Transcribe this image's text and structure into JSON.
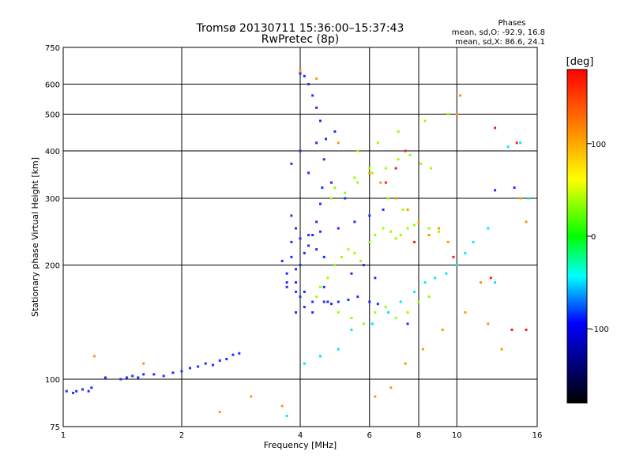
{
  "title_line1": "Tromsø 20130711 15:36:00–15:37:43",
  "title_line2": "RwPretec (8p)",
  "phases": {
    "heading": "Phases",
    "o_line": "mean, sd,O: -92.9, 16.8",
    "x_line": "mean, sd,X:  86.6, 24.1"
  },
  "chart_data": {
    "type": "scatter",
    "xlabel": "Frequency [MHz]",
    "ylabel": "Stationary phase Virtual Height [km]",
    "x_scale": "log",
    "y_scale": "log",
    "xlim": [
      1,
      16
    ],
    "ylim": [
      75,
      750
    ],
    "x_ticks": [
      1,
      2,
      4,
      6,
      8,
      10,
      16
    ],
    "x_gridlines": [
      2,
      4,
      6,
      8,
      10
    ],
    "y_ticks": [
      75,
      100,
      200,
      300,
      400,
      500,
      600,
      750
    ],
    "y_gridlines": [
      100,
      200,
      300,
      400,
      500,
      600
    ],
    "grid": true,
    "colorbar": {
      "label": "[deg]",
      "range": [
        -180,
        180
      ],
      "ticks": [
        100,
        0,
        -100
      ],
      "colors": [
        "#ff0000",
        "#ff8000",
        "#ffff00",
        "#00ff00",
        "#00ffff",
        "#0000ff",
        "#000000"
      ]
    },
    "series": [
      {
        "x": [
          1.02,
          1.06,
          1.08,
          1.12,
          1.16,
          1.18,
          1.28,
          1.4,
          1.45,
          1.5,
          1.55,
          1.6,
          1.7,
          1.8,
          1.9,
          2.0,
          2.1,
          2.2,
          2.3,
          2.4,
          2.5,
          2.6,
          2.7,
          2.8,
          3.6,
          3.7,
          3.8,
          3.9,
          4.0,
          4.1,
          4.2,
          4.3,
          4.4,
          4.5,
          4.55,
          4.6,
          4.65,
          4.5,
          4.4,
          4.3,
          4.2,
          4.1,
          4.0,
          3.9,
          3.8,
          3.7,
          3.7,
          3.9,
          4.0,
          4.3,
          4.6,
          4.8,
          5.0,
          5.3,
          5.6,
          6.0,
          6.3,
          5.8,
          4.4,
          4.6,
          3.8,
          4.0,
          4.2,
          4.5,
          5.0,
          5.5,
          6.0,
          6.5,
          5.2,
          4.8,
          4.2,
          3.8,
          4.0,
          4.4,
          4.9,
          5.4,
          6.2,
          4.6,
          4.1,
          3.9,
          7.5,
          12.5,
          14.0,
          4.7,
          3.9,
          4.1,
          4.3
        ],
        "y": [
          93,
          92,
          93,
          94,
          93,
          95,
          101,
          100,
          101,
          102,
          101,
          103,
          103,
          102,
          104,
          105,
          107,
          108,
          110,
          109,
          112,
          113,
          116,
          117,
          205,
          190,
          210,
          195,
          200,
          215,
          225,
          240,
          260,
          290,
          320,
          380,
          430,
          480,
          520,
          560,
          600,
          630,
          640,
          250,
          270,
          180,
          175,
          170,
          165,
          160,
          160,
          158,
          160,
          162,
          165,
          160,
          158,
          200,
          220,
          210,
          230,
          235,
          240,
          245,
          250,
          260,
          270,
          280,
          300,
          330,
          350,
          370,
          400,
          420,
          450,
          190,
          185,
          175,
          170,
          180,
          140,
          315,
          320,
          160,
          150,
          155,
          150
        ],
        "color": "#1f2fff"
      },
      {
        "x": [
          4.4,
          4.5,
          4.7,
          4.9,
          5.1,
          5.3,
          5.5,
          5.7,
          6.0,
          6.2,
          6.5,
          6.8,
          7.0,
          7.2,
          7.5,
          7.8,
          8.0,
          8.5,
          9.0,
          4.8,
          5.2,
          5.6,
          6.1,
          6.6,
          7.1,
          7.6,
          8.1,
          8.6,
          5.0,
          5.4,
          5.8,
          6.2,
          6.6,
          7.0,
          7.5,
          8.0,
          8.5,
          5.6,
          6.3,
          7.1,
          8.3,
          9.5,
          4.9,
          5.5,
          6.0,
          6.7,
          7.3
        ],
        "y": [
          165,
          175,
          185,
          200,
          210,
          220,
          215,
          205,
          230,
          240,
          250,
          245,
          235,
          240,
          250,
          255,
          260,
          250,
          245,
          300,
          310,
          330,
          350,
          360,
          380,
          390,
          370,
          360,
          150,
          145,
          140,
          150,
          155,
          145,
          150,
          160,
          165,
          400,
          420,
          450,
          480,
          500,
          320,
          340,
          360,
          300,
          280
        ],
        "color": "#9cff00"
      },
      {
        "x": [
          1.2,
          1.6,
          2.5,
          3.0,
          3.6,
          4.0,
          4.4,
          5.0,
          6.0,
          6.4,
          7.0,
          7.5,
          8.0,
          8.5,
          9.0,
          9.5,
          10.0,
          10.2,
          11.5,
          12.0,
          13.0,
          14.5,
          15.0,
          6.2,
          6.8,
          7.4,
          8.2,
          9.2,
          10.5
        ],
        "y": [
          115,
          110,
          82,
          90,
          85,
          650,
          620,
          420,
          350,
          330,
          300,
          280,
          260,
          240,
          250,
          230,
          500,
          560,
          180,
          140,
          120,
          300,
          260,
          90,
          95,
          110,
          120,
          135,
          150
        ],
        "color": "#ff9900"
      },
      {
        "x": [
          3.7,
          4.1,
          4.5,
          5.0,
          5.4,
          6.1,
          6.7,
          7.2,
          7.8,
          8.3,
          8.8,
          9.4,
          10.0,
          10.5,
          11.0,
          12.0,
          12.5,
          13.5,
          14.5,
          15.2
        ],
        "y": [
          80,
          110,
          115,
          120,
          135,
          140,
          150,
          160,
          170,
          180,
          185,
          190,
          200,
          215,
          230,
          250,
          180,
          410,
          420,
          300
        ],
        "color": "#00e8ff"
      },
      {
        "x": [
          6.6,
          7.0,
          7.4,
          7.8,
          9.8,
          12.5,
          13.8,
          14.2,
          15.0,
          12.2
        ],
        "y": [
          330,
          360,
          400,
          230,
          210,
          460,
          135,
          420,
          135,
          185
        ],
        "color": "#ff1a1a"
      }
    ]
  }
}
